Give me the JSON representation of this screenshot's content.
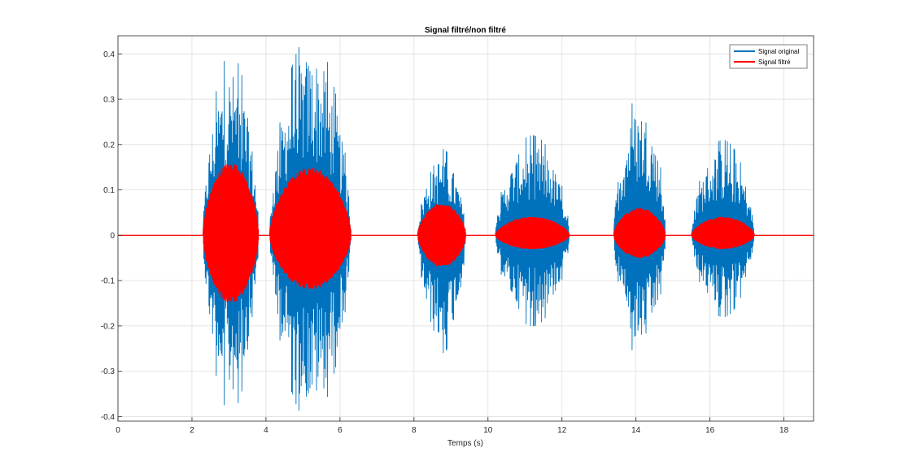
{
  "chart_data": {
    "type": "line",
    "title": "Signal filtré/non filtré",
    "xlabel": "Temps (s)",
    "ylabel": "",
    "xlim": [
      0,
      18.8
    ],
    "ylim": [
      -0.41,
      0.44
    ],
    "xticks": [
      0,
      2,
      4,
      6,
      8,
      10,
      12,
      14,
      16,
      18
    ],
    "yticks": [
      -0.4,
      -0.3,
      -0.2,
      -0.1,
      0,
      0.1,
      0.2,
      0.3,
      0.4
    ],
    "xtick_labels": [
      "0",
      "2",
      "4",
      "6",
      "8",
      "10",
      "12",
      "14",
      "16",
      "18"
    ],
    "ytick_labels": [
      "-0.4",
      "-0.3",
      "-0.2",
      "-0.1",
      "0",
      "0.1",
      "0.2",
      "0.3",
      "0.4"
    ],
    "grid": true,
    "legend_position": "top-right",
    "series": [
      {
        "name": "Signal original",
        "color": "#0072BD",
        "segments": [
          {
            "t_start": 2.3,
            "t_end": 3.8,
            "peak_pos": 0.4,
            "peak_neg": -0.39
          },
          {
            "t_start": 4.1,
            "t_end": 6.3,
            "peak_pos": 0.44,
            "peak_neg": -0.41
          },
          {
            "t_start": 8.1,
            "t_end": 9.4,
            "peak_pos": 0.19,
            "peak_neg": -0.26
          },
          {
            "t_start": 10.2,
            "t_end": 12.2,
            "peak_pos": 0.22,
            "peak_neg": -0.2
          },
          {
            "t_start": 13.4,
            "t_end": 14.8,
            "peak_pos": 0.31,
            "peak_neg": -0.27
          },
          {
            "t_start": 15.5,
            "t_end": 17.2,
            "peak_pos": 0.21,
            "peak_neg": -0.18
          }
        ]
      },
      {
        "name": "Signal filtré",
        "color": "#FF0000",
        "segments": [
          {
            "t_start": 2.3,
            "t_end": 3.8,
            "peak_pos": 0.16,
            "peak_neg": -0.15
          },
          {
            "t_start": 4.1,
            "t_end": 6.3,
            "peak_pos": 0.15,
            "peak_neg": -0.12
          },
          {
            "t_start": 8.1,
            "t_end": 9.4,
            "peak_pos": 0.07,
            "peak_neg": -0.07
          },
          {
            "t_start": 10.2,
            "t_end": 12.2,
            "peak_pos": 0.04,
            "peak_neg": -0.03
          },
          {
            "t_start": 13.4,
            "t_end": 14.8,
            "peak_pos": 0.06,
            "peak_neg": -0.05
          },
          {
            "t_start": 15.5,
            "t_end": 17.2,
            "peak_pos": 0.04,
            "peak_neg": -0.03
          }
        ]
      }
    ]
  }
}
